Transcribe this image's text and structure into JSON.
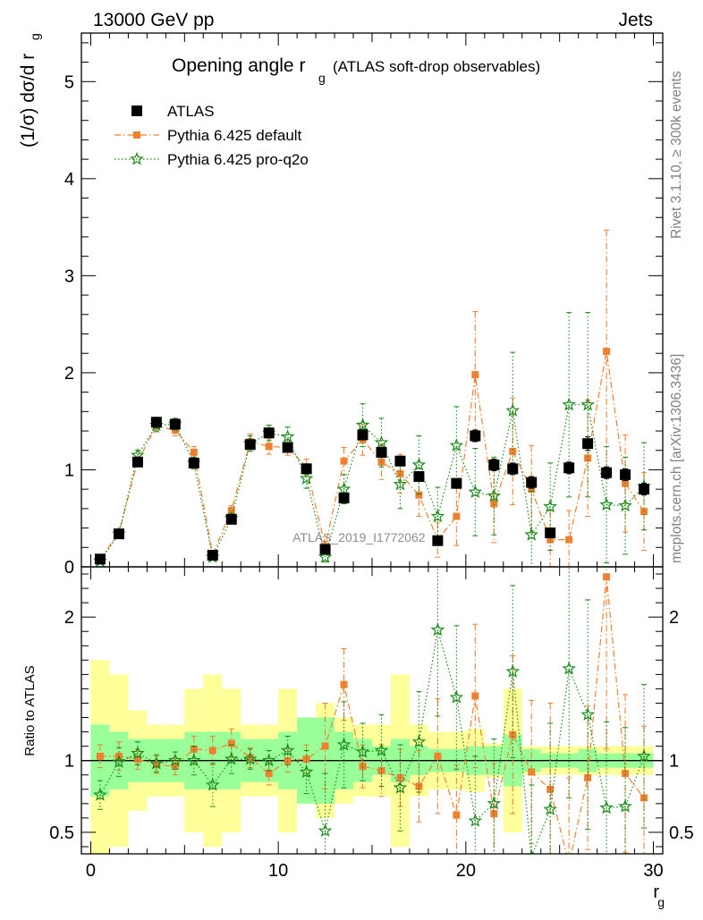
{
  "header": {
    "left": "13000 GeV pp",
    "right": "Jets"
  },
  "side_text": {
    "rivet": "Rivet 3.1.10, ≥ 300k events",
    "mcplots": "mcplots.cern.ch [arXiv:1306.3436]"
  },
  "chart_data": [
    {
      "type": "scatter",
      "title": "Opening angle r",
      "title_sub": "g",
      "title_suffix": "(ATLAS soft-drop observables)",
      "ylabel": "(1/σ) dσ/d r",
      "ylabel_sub": "g",
      "watermark": "ATLAS_2019_I1772062",
      "xlim": [
        -0.5,
        30.5
      ],
      "ylim": [
        0,
        5.5
      ],
      "y_ticks": [
        0,
        1,
        2,
        3,
        4,
        5
      ],
      "legend_position": "top-left",
      "x": [
        0.5,
        1.5,
        2.5,
        3.5,
        4.5,
        5.5,
        6.5,
        7.5,
        8.5,
        9.5,
        10.5,
        11.5,
        12.5,
        13.5,
        14.5,
        15.5,
        16.5,
        17.5,
        18.5,
        19.5,
        20.5,
        21.5,
        22.5,
        23.5,
        24.5,
        25.5,
        26.5,
        27.5,
        28.5,
        29.5
      ],
      "series": [
        {
          "name": "ATLAS",
          "color": "#000000",
          "marker": "square",
          "values": [
            0.08,
            0.34,
            1.08,
            1.49,
            1.47,
            1.07,
            0.12,
            0.49,
            1.26,
            1.38,
            1.23,
            1.01,
            0.18,
            0.71,
            1.36,
            1.18,
            1.09,
            0.93,
            0.27,
            0.86,
            1.35,
            1.05,
            1.01,
            0.87,
            0.35,
            1.02,
            1.27,
            0.97,
            0.95,
            0.8
          ],
          "yerr": [
            0.02,
            0.03,
            0.04,
            0.05,
            0.05,
            0.04,
            0.02,
            0.03,
            0.04,
            0.05,
            0.05,
            0.04,
            0.02,
            0.04,
            0.05,
            0.05,
            0.05,
            0.05,
            0.03,
            0.05,
            0.06,
            0.06,
            0.06,
            0.06,
            0.04,
            0.06,
            0.07,
            0.06,
            0.06,
            0.06
          ]
        },
        {
          "name": "Pythia 6.425 default",
          "color": "#f08030",
          "marker": "square-small",
          "line": "dashdot",
          "values": [
            0.08,
            0.35,
            1.09,
            1.45,
            1.41,
            1.18,
            0.13,
            0.58,
            1.29,
            1.24,
            1.23,
            1.03,
            0.21,
            1.09,
            1.31,
            1.08,
            0.96,
            0.74,
            0.28,
            0.52,
            1.98,
            0.65,
            1.19,
            0.8,
            0.28,
            0.28,
            1.12,
            2.22,
            0.86,
            0.57
          ],
          "yerr": [
            0.02,
            0.03,
            0.05,
            0.06,
            0.06,
            0.06,
            0.03,
            0.05,
            0.08,
            0.08,
            0.08,
            0.08,
            0.05,
            0.14,
            0.16,
            0.18,
            0.2,
            0.22,
            0.18,
            0.3,
            0.65,
            0.4,
            0.55,
            0.45,
            0.3,
            0.3,
            0.6,
            1.25,
            0.5,
            0.4
          ]
        },
        {
          "name": "Pythia 6.425 pro-q2o",
          "color": "#1a8a1a",
          "marker": "star",
          "line": "dotted",
          "values": [
            0.06,
            0.34,
            1.15,
            1.46,
            1.47,
            1.07,
            0.1,
            0.5,
            1.27,
            1.38,
            1.34,
            0.91,
            0.1,
            0.8,
            1.46,
            1.28,
            0.85,
            1.05,
            0.52,
            1.25,
            0.77,
            0.73,
            1.61,
            0.33,
            0.62,
            1.67,
            1.67,
            0.64,
            0.63,
            0.83
          ],
          "yerr": [
            0.02,
            0.03,
            0.05,
            0.06,
            0.06,
            0.06,
            0.03,
            0.05,
            0.08,
            0.08,
            0.1,
            0.1,
            0.05,
            0.15,
            0.22,
            0.25,
            0.25,
            0.3,
            0.3,
            0.4,
            0.45,
            0.4,
            0.6,
            0.45,
            0.45,
            0.95,
            0.95,
            0.6,
            0.5,
            0.45
          ]
        }
      ]
    },
    {
      "type": "scatter",
      "ylabel": "Ratio to ATLAS",
      "xlabel": "r",
      "xlabel_sub": "g",
      "xlim": [
        -0.5,
        30.5
      ],
      "ylim": [
        0.35,
        2.35
      ],
      "x_ticks": [
        0,
        10,
        20,
        30
      ],
      "y_ticks": [
        0.5,
        1,
        2
      ],
      "band_green_halfwidth": [
        0.25,
        0.2,
        0.15,
        0.15,
        0.15,
        0.2,
        0.2,
        0.2,
        0.15,
        0.15,
        0.2,
        0.3,
        0.3,
        0.2,
        0.15,
        0.1,
        0.15,
        0.1,
        0.08,
        0.08,
        0.1,
        0.1,
        0.18,
        0.08,
        0.05,
        0.05,
        0.08,
        0.05,
        0.05,
        0.05
      ],
      "band_yellow_halfwidth": [
        0.7,
        0.6,
        0.35,
        0.25,
        0.25,
        0.5,
        0.6,
        0.5,
        0.25,
        0.25,
        0.5,
        0.3,
        0.4,
        0.3,
        0.25,
        0.25,
        0.6,
        0.25,
        0.2,
        0.2,
        0.22,
        0.12,
        0.5,
        0.1,
        0.1,
        0.1,
        0.1,
        0.1,
        0.1,
        0.1
      ],
      "x": [
        0.5,
        1.5,
        2.5,
        3.5,
        4.5,
        5.5,
        6.5,
        7.5,
        8.5,
        9.5,
        10.5,
        11.5,
        12.5,
        13.5,
        14.5,
        15.5,
        16.5,
        17.5,
        18.5,
        19.5,
        20.5,
        21.5,
        22.5,
        23.5,
        24.5,
        25.5,
        26.5,
        27.5,
        28.5,
        29.5
      ],
      "series": [
        {
          "name": "Pythia 6.425 default",
          "color": "#f08030",
          "marker": "square-small",
          "line": "dashdot",
          "values": [
            1.03,
            1.03,
            1.01,
            0.97,
            0.96,
            1.08,
            1.07,
            1.12,
            1.02,
            0.91,
            1.0,
            1.01,
            1.1,
            1.53,
            0.96,
            0.93,
            0.88,
            0.82,
            1.03,
            0.62,
            1.45,
            0.63,
            1.18,
            0.92,
            0.8,
            0.28,
            0.88,
            2.28,
            0.91,
            0.74
          ],
          "yerr": [
            0.08,
            0.1,
            0.07,
            0.06,
            0.06,
            0.09,
            0.1,
            0.1,
            0.07,
            0.08,
            0.08,
            0.1,
            0.3,
            0.25,
            0.15,
            0.18,
            0.2,
            0.25,
            0.4,
            0.35,
            0.5,
            0.35,
            0.55,
            0.5,
            0.6,
            0.6,
            0.5,
            1.2,
            0.55,
            0.5
          ]
        },
        {
          "name": "Pythia 6.425 pro-q2o",
          "color": "#1a8a1a",
          "marker": "star",
          "line": "dotted",
          "values": [
            0.76,
            0.99,
            1.05,
            0.98,
            1.0,
            1.0,
            0.83,
            1.01,
            1.01,
            1.0,
            1.07,
            0.92,
            0.51,
            1.11,
            1.06,
            1.07,
            0.81,
            1.13,
            1.91,
            1.44,
            0.58,
            0.7,
            1.62,
            0.33,
            0.66,
            1.64,
            1.32,
            0.67,
            0.68,
            1.03
          ],
          "yerr": [
            0.1,
            0.1,
            0.08,
            0.06,
            0.06,
            0.1,
            0.15,
            0.1,
            0.07,
            0.07,
            0.1,
            0.15,
            0.4,
            0.3,
            0.2,
            0.25,
            0.3,
            0.35,
            0.6,
            0.5,
            0.45,
            0.45,
            0.6,
            0.5,
            0.6,
            0.9,
            0.8,
            0.6,
            0.55,
            0.5
          ]
        }
      ]
    }
  ]
}
